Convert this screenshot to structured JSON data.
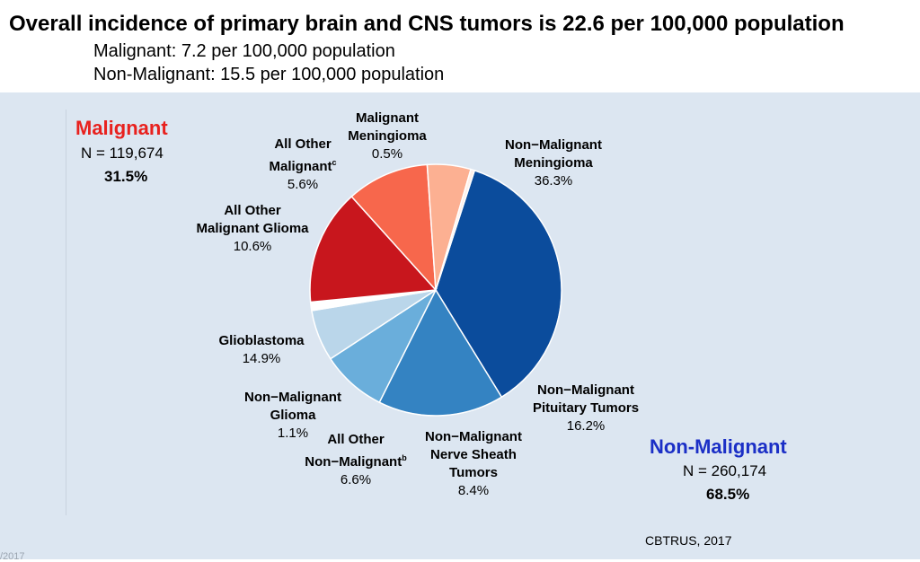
{
  "header": {
    "title": "Overall incidence of primary brain and CNS tumors is 22.6 per 100,000 population",
    "line1": "Malignant: 7.2 per 100,000 population",
    "line2": "Non-Malignant: 15.5 per 100,000 population"
  },
  "groups": {
    "malignant": {
      "title": "Malignant",
      "n": "N = 119,674",
      "pct": "31.5%",
      "color": "#e8211e"
    },
    "non_malignant": {
      "title": "Non-Malignant",
      "n": "N = 260,174",
      "pct": "68.5%",
      "color": "#1b2fc6"
    }
  },
  "source": "CBTRUS, 2017",
  "footer": "/2017",
  "chart_data": {
    "type": "pie",
    "title": "",
    "slices": [
      {
        "label": "Non−Malignant Meningioma",
        "lines": [
          "Non−Malignant",
          "Meningioma"
        ],
        "value": 36.3,
        "pct_label": "36.3%",
        "color": "#0b4c9c"
      },
      {
        "label": "Non−Malignant Pituitary Tumors",
        "lines": [
          "Non−Malignant",
          "Pituitary Tumors"
        ],
        "value": 16.2,
        "pct_label": "16.2%",
        "color": "#3483c2"
      },
      {
        "label": "Non−Malignant Nerve Sheath Tumors",
        "lines": [
          "Non−Malignant",
          "Nerve Sheath",
          "Tumors"
        ],
        "value": 8.4,
        "pct_label": "8.4%",
        "color": "#6aaedb"
      },
      {
        "label": "All Other Non−Malignant",
        "lines": [
          "All Other",
          "Non−Malignant"
        ],
        "sup": "b",
        "value": 6.6,
        "pct_label": "6.6%",
        "color": "#bad6ea"
      },
      {
        "label": "Non−Malignant Glioma",
        "lines": [
          "Non−Malignant",
          "Glioma"
        ],
        "value": 1.1,
        "pct_label": "1.1%",
        "color": "#ffffff"
      },
      {
        "label": "Glioblastoma",
        "lines": [
          "Glioblastoma"
        ],
        "value": 14.9,
        "pct_label": "14.9%",
        "color": "#c8161d"
      },
      {
        "label": "All Other Malignant Glioma",
        "lines": [
          "All Other",
          "Malignant Glioma"
        ],
        "value": 10.6,
        "pct_label": "10.6%",
        "color": "#f7674c"
      },
      {
        "label": "All Other Malignant",
        "lines": [
          "All Other",
          "Malignant"
        ],
        "sup": "c",
        "value": 5.6,
        "pct_label": "5.6%",
        "color": "#fcb092"
      },
      {
        "label": "Malignant Meningioma",
        "lines": [
          "Malignant",
          "Meningioma"
        ],
        "value": 0.5,
        "pct_label": "0.5%",
        "color": "#fff1ea"
      }
    ]
  }
}
